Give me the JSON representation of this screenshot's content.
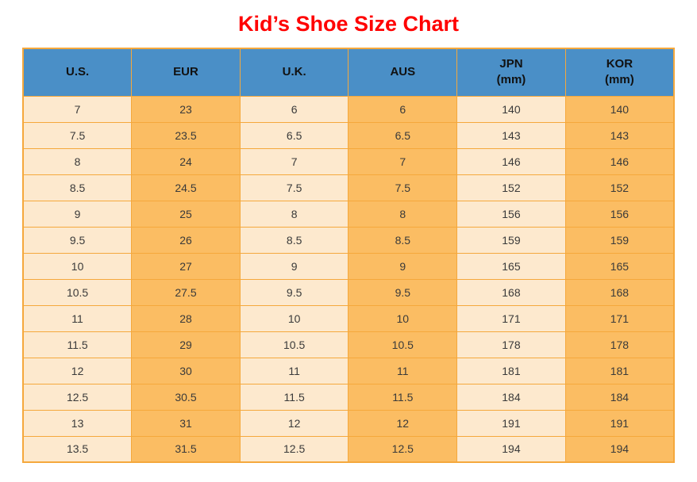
{
  "title": "Kid’s Shoe Size Chart",
  "chart_data": {
    "type": "table",
    "title": "Kid’s Shoe Size Chart",
    "columns": [
      {
        "label": "U.S.",
        "sub": ""
      },
      {
        "label": "EUR",
        "sub": ""
      },
      {
        "label": "U.K.",
        "sub": ""
      },
      {
        "label": "AUS",
        "sub": ""
      },
      {
        "label": "JPN",
        "sub": "(mm)"
      },
      {
        "label": "KOR",
        "sub": "(mm)"
      }
    ],
    "rows": [
      [
        "7",
        "23",
        "6",
        "6",
        "140",
        "140"
      ],
      [
        "7.5",
        "23.5",
        "6.5",
        "6.5",
        "143",
        "143"
      ],
      [
        "8",
        "24",
        "7",
        "7",
        "146",
        "146"
      ],
      [
        "8.5",
        "24.5",
        "7.5",
        "7.5",
        "152",
        "152"
      ],
      [
        "9",
        "25",
        "8",
        "8",
        "156",
        "156"
      ],
      [
        "9.5",
        "26",
        "8.5",
        "8.5",
        "159",
        "159"
      ],
      [
        "10",
        "27",
        "9",
        "9",
        "165",
        "165"
      ],
      [
        "10.5",
        "27.5",
        "9.5",
        "9.5",
        "168",
        "168"
      ],
      [
        "11",
        "28",
        "10",
        "10",
        "171",
        "171"
      ],
      [
        "11.5",
        "29",
        "10.5",
        "10.5",
        "178",
        "178"
      ],
      [
        "12",
        "30",
        "11",
        "11",
        "181",
        "181"
      ],
      [
        "12.5",
        "30.5",
        "11.5",
        "11.5",
        "184",
        "184"
      ],
      [
        "13",
        "31",
        "12",
        "12",
        "191",
        "191"
      ],
      [
        "13.5",
        "31.5",
        "12.5",
        "12.5",
        "194",
        "194"
      ]
    ]
  },
  "colors": {
    "title_color": "#FF0000",
    "header_bg": "#4A8FC7",
    "col_light": "#FDE9CE",
    "col_dark": "#FBBD63",
    "border_color": "#F5A83C",
    "header_text": "#111111",
    "body_text": "#3A3A3A"
  }
}
